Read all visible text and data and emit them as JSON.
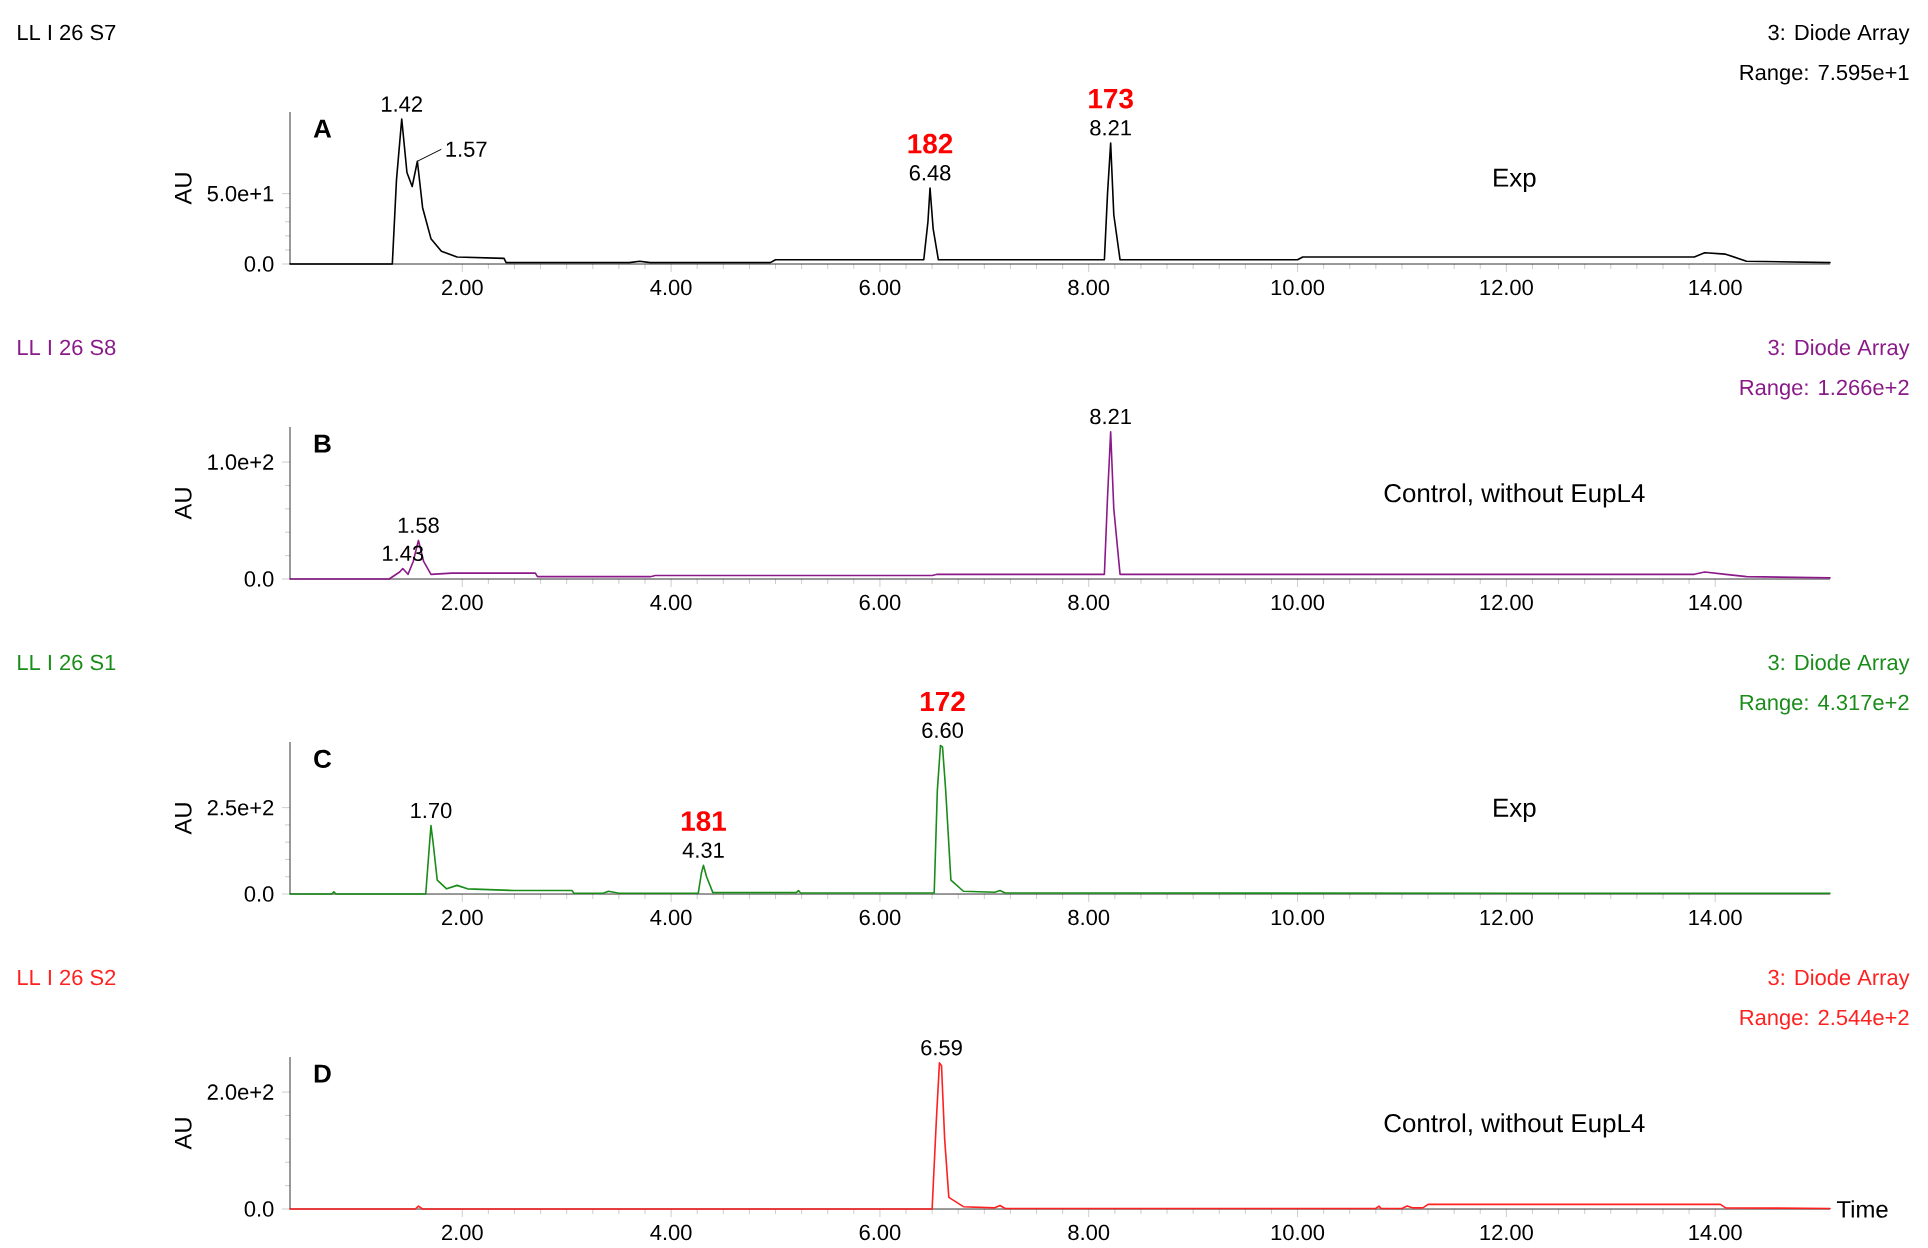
{
  "chart_data": [
    {
      "type": "line",
      "title": "LL I 26 S7",
      "subtitle": "3: Diode Array",
      "ylabel": "AU",
      "annotations": [
        "A",
        "Range: 7.595e+1",
        "Exp",
        {
          "text": "1.42",
          "x": 1.42,
          "y": 103
        },
        {
          "text": "1.57",
          "x": 1.57,
          "y": 73
        },
        {
          "text": "6.48",
          "x": 6.48,
          "y": 54
        },
        {
          "text": "182",
          "x": 6.48,
          "y": 54
        },
        {
          "text": "8.21",
          "x": 8.21,
          "y": 86
        },
        {
          "text": "173",
          "x": 8.21,
          "y": 86
        }
      ],
      "series": [
        {
          "color": "#000000",
          "x": [
            0.35,
            1.33,
            1.37,
            1.42,
            1.47,
            1.52,
            1.57,
            1.62,
            1.7,
            1.8,
            1.95,
            2.4,
            2.42,
            3.6,
            3.7,
            3.8,
            4.95,
            5.0,
            6.42,
            6.46,
            6.48,
            6.51,
            6.56,
            8.15,
            8.18,
            8.21,
            8.24,
            8.3,
            10.0,
            10.05,
            13.8,
            13.9,
            14.1,
            14.3,
            15.1
          ],
          "values": [
            0,
            0,
            60,
            103,
            65,
            55,
            73,
            40,
            18,
            9,
            5,
            4,
            1,
            1,
            2,
            1,
            1,
            3,
            3,
            30,
            54,
            25,
            3,
            3,
            50,
            86,
            35,
            3,
            3,
            5,
            5,
            8,
            7,
            2,
            1
          ]
        }
      ],
      "xlim": [
        0.35,
        15.1
      ],
      "ylim": [
        0,
        108
      ],
      "xticks": [
        {
          "value": 2,
          "label": "2.00"
        },
        {
          "value": 4,
          "label": "4.00"
        },
        {
          "value": 6,
          "label": "6.00"
        },
        {
          "value": 8,
          "label": "8.00"
        },
        {
          "value": 10,
          "label": "10.00"
        },
        {
          "value": 12,
          "label": "12.00"
        },
        {
          "value": 14,
          "label": "14.00"
        }
      ],
      "yticks": [
        {
          "value": 0,
          "label": "0.0"
        },
        {
          "value": 50,
          "label": "5.0e+1"
        }
      ]
    },
    {
      "type": "line",
      "title": "LL I 26 S8",
      "subtitle": "3: Diode Array",
      "ylabel": "AU",
      "annotations": [
        "B",
        "Range: 1.266e+2",
        "Control, without EupL4",
        {
          "text": "1.43",
          "x": 1.43,
          "y": 9
        },
        {
          "text": "1.58",
          "x": 1.58,
          "y": 33
        },
        {
          "text": "8.21",
          "x": 8.21,
          "y": 126
        }
      ],
      "series": [
        {
          "color": "#8b1a89",
          "x": [
            0.35,
            1.3,
            1.4,
            1.43,
            1.48,
            1.53,
            1.58,
            1.63,
            1.7,
            1.9,
            2.7,
            2.72,
            3.8,
            3.85,
            6.5,
            6.55,
            8.15,
            8.18,
            8.21,
            8.24,
            8.3,
            13.8,
            13.9,
            14.1,
            14.3,
            15.1
          ],
          "values": [
            0,
            0,
            6,
            9,
            4,
            15,
            33,
            15,
            4,
            5,
            5,
            2,
            2,
            3,
            3,
            4,
            4,
            70,
            126,
            60,
            4,
            4,
            6,
            4,
            2,
            1
          ]
        }
      ],
      "xlim": [
        0.35,
        15.1
      ],
      "ylim": [
        0,
        130
      ],
      "xticks": [
        {
          "value": 2,
          "label": "2.00"
        },
        {
          "value": 4,
          "label": "4.00"
        },
        {
          "value": 6,
          "label": "6.00"
        },
        {
          "value": 8,
          "label": "8.00"
        },
        {
          "value": 10,
          "label": "10.00"
        },
        {
          "value": 12,
          "label": "12.00"
        },
        {
          "value": 14,
          "label": "14.00"
        }
      ],
      "yticks": [
        {
          "value": 0,
          "label": "0.0"
        },
        {
          "value": 100,
          "label": "1.0e+2"
        }
      ]
    },
    {
      "type": "line",
      "title": "LL I 26 S1",
      "subtitle": "3: Diode Array",
      "ylabel": "AU",
      "annotations": [
        "C",
        "Range: 4.317e+2",
        "Exp",
        {
          "text": "1.70",
          "x": 1.7,
          "y": 198
        },
        {
          "text": "4.31",
          "x": 4.31,
          "y": 83
        },
        {
          "text": "181",
          "x": 4.31,
          "y": 83
        },
        {
          "text": "6.60",
          "x": 6.6,
          "y": 430
        },
        {
          "text": "172",
          "x": 6.6,
          "y": 430
        }
      ],
      "series": [
        {
          "color": "#1a8c1a",
          "x": [
            0.35,
            0.75,
            0.77,
            0.79,
            1.65,
            1.68,
            1.7,
            1.72,
            1.76,
            1.85,
            1.95,
            2.05,
            2.5,
            3.05,
            3.07,
            3.35,
            3.4,
            3.5,
            4.26,
            4.29,
            4.31,
            4.34,
            4.4,
            5.2,
            5.22,
            5.24,
            6.52,
            6.55,
            6.58,
            6.6,
            6.63,
            6.68,
            6.8,
            7.1,
            7.15,
            7.2,
            15.1
          ],
          "values": [
            0,
            0,
            6,
            0,
            0,
            120,
            198,
            150,
            40,
            15,
            25,
            15,
            10,
            10,
            2,
            2,
            8,
            2,
            2,
            60,
            83,
            50,
            4,
            4,
            10,
            3,
            3,
            300,
            430,
            425,
            300,
            40,
            8,
            5,
            10,
            3,
            2
          ]
        }
      ],
      "xlim": [
        0.35,
        15.1
      ],
      "ylim": [
        0,
        440
      ],
      "xticks": [
        {
          "value": 2,
          "label": "2.00"
        },
        {
          "value": 4,
          "label": "4.00"
        },
        {
          "value": 6,
          "label": "6.00"
        },
        {
          "value": 8,
          "label": "8.00"
        },
        {
          "value": 10,
          "label": "10.00"
        },
        {
          "value": 12,
          "label": "12.00"
        },
        {
          "value": 14,
          "label": "14.00"
        }
      ],
      "yticks": [
        {
          "value": 0,
          "label": "0.0"
        },
        {
          "value": 250,
          "label": "2.5e+2"
        }
      ]
    },
    {
      "type": "line",
      "title": "LL I 26 S2",
      "subtitle": "3: Diode Array",
      "ylabel": "AU",
      "xlabel": "Time",
      "annotations": [
        "D",
        "Range: 2.544e+2",
        "Control, without EupL4",
        {
          "text": "6.59",
          "x": 6.59,
          "y": 250
        }
      ],
      "series": [
        {
          "color": "#ff2020",
          "x": [
            0.35,
            1.55,
            1.58,
            1.62,
            6.5,
            6.54,
            6.57,
            6.59,
            6.62,
            6.66,
            6.8,
            7.1,
            7.15,
            7.2,
            10.75,
            10.78,
            10.8,
            11.0,
            11.05,
            11.1,
            11.2,
            11.25,
            14.05,
            14.1,
            15.1
          ],
          "values": [
            0,
            0,
            5,
            0,
            0,
            150,
            250,
            245,
            120,
            20,
            4,
            2,
            6,
            1,
            1,
            5,
            1,
            1,
            5,
            2,
            2,
            8,
            8,
            2,
            1
          ]
        }
      ],
      "xlim": [
        0.35,
        15.1
      ],
      "ylim": [
        0,
        260
      ],
      "xticks": [
        {
          "value": 2,
          "label": "2.00"
        },
        {
          "value": 4,
          "label": "4.00"
        },
        {
          "value": 6,
          "label": "6.00"
        },
        {
          "value": 8,
          "label": "8.00"
        },
        {
          "value": 10,
          "label": "10.00"
        },
        {
          "value": 12,
          "label": "12.00"
        },
        {
          "value": 14,
          "label": "14.00"
        }
      ],
      "yticks": [
        {
          "value": 0,
          "label": "0.0"
        },
        {
          "value": 200,
          "label": "2.0e+2"
        }
      ]
    }
  ]
}
